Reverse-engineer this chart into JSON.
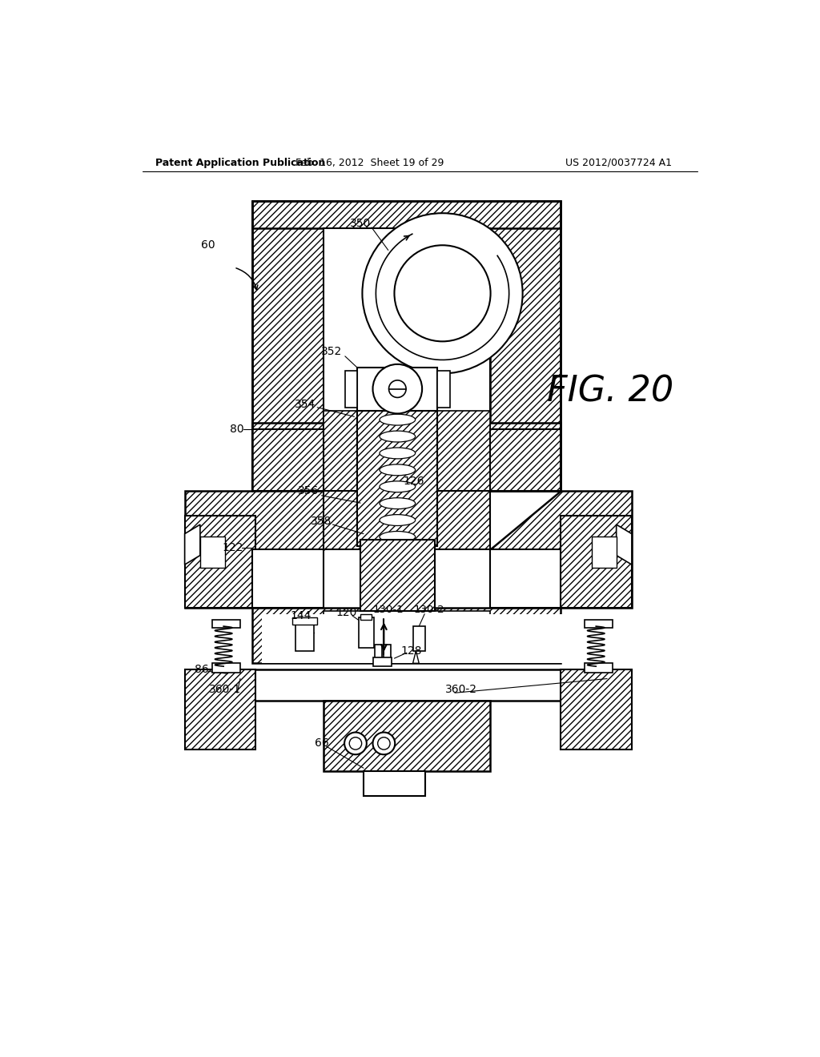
{
  "header_left": "Patent Application Publication",
  "header_mid": "Feb. 16, 2012  Sheet 19 of 29",
  "header_right": "US 2012/0037724 A1",
  "fig_label": "FIG. 20",
  "bg_color": "#ffffff",
  "line_color": "#000000"
}
